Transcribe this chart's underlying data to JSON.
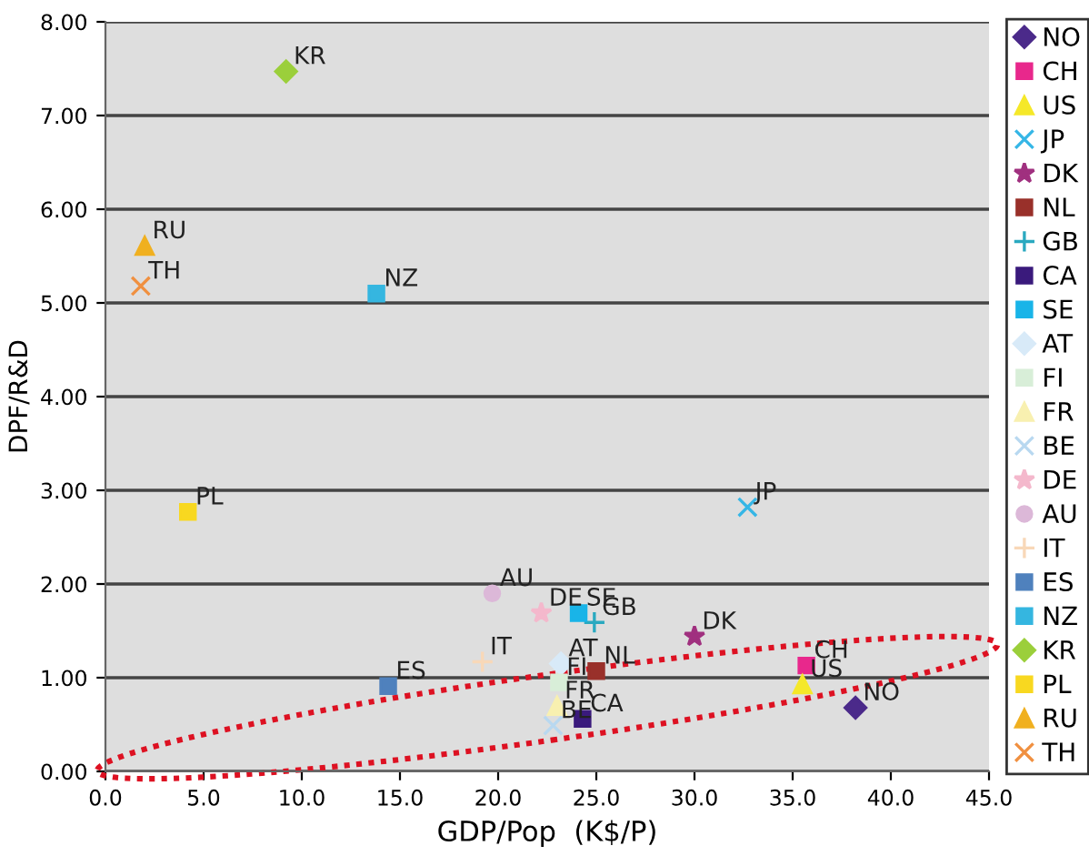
{
  "chart_data": {
    "type": "scatter",
    "xlabel": "GDP/Pop  (K$/P)",
    "ylabel": "DPF/R&D",
    "xlim": [
      0,
      45
    ],
    "ylim": [
      0,
      8
    ],
    "xticks": [
      {
        "value": 0,
        "label": "0.0"
      },
      {
        "value": 5,
        "label": "5.0"
      },
      {
        "value": 10,
        "label": "10.0"
      },
      {
        "value": 15,
        "label": "15.0"
      },
      {
        "value": 20,
        "label": "20.0"
      },
      {
        "value": 25,
        "label": "25.0"
      },
      {
        "value": 30,
        "label": "30.0"
      },
      {
        "value": 35,
        "label": "35.0"
      },
      {
        "value": 40,
        "label": "40.0"
      },
      {
        "value": 45,
        "label": "45.0"
      }
    ],
    "yticks": [
      {
        "value": 0,
        "label": "0.00"
      },
      {
        "value": 1,
        "label": "1.00"
      },
      {
        "value": 2,
        "label": "2.00"
      },
      {
        "value": 3,
        "label": "3.00"
      },
      {
        "value": 4,
        "label": "4.00"
      },
      {
        "value": 5,
        "label": "5.00"
      },
      {
        "value": 6,
        "label": "6.00"
      },
      {
        "value": 7,
        "label": "7.00"
      },
      {
        "value": 8,
        "label": "8.00"
      }
    ],
    "grid": "y",
    "legend": "right",
    "series": [
      {
        "name": "NO",
        "color": "#4b2a8a",
        "marker": "diamond",
        "x": [
          38.2
        ],
        "values": [
          0.68
        ]
      },
      {
        "name": "CH",
        "color": "#e8288c",
        "marker": "square",
        "x": [
          35.7
        ],
        "values": [
          1.13
        ]
      },
      {
        "name": "US",
        "color": "#f5e829",
        "marker": "triangle",
        "x": [
          35.5
        ],
        "values": [
          0.93
        ]
      },
      {
        "name": "JP",
        "color": "#35b6e6",
        "marker": "cross",
        "x": [
          32.7
        ],
        "values": [
          2.82
        ]
      },
      {
        "name": "DK",
        "color": "#a0307f",
        "marker": "star",
        "x": [
          30.0
        ],
        "values": [
          1.44
        ]
      },
      {
        "name": "NL",
        "color": "#99302a",
        "marker": "square",
        "x": [
          25.0
        ],
        "values": [
          1.07
        ]
      },
      {
        "name": "GB",
        "color": "#2aa9c0",
        "marker": "plus",
        "x": [
          24.9
        ],
        "values": [
          1.59
        ]
      },
      {
        "name": "CA",
        "color": "#3a1a7c",
        "marker": "square",
        "x": [
          24.3
        ],
        "values": [
          0.56
        ]
      },
      {
        "name": "SE",
        "color": "#19b4e8",
        "marker": "square",
        "x": [
          24.1
        ],
        "values": [
          1.69
        ]
      },
      {
        "name": "AT",
        "color": "#d8eaf8",
        "marker": "diamond",
        "x": [
          23.2
        ],
        "values": [
          1.15
        ]
      },
      {
        "name": "FI",
        "color": "#d8eed8",
        "marker": "square",
        "x": [
          23.1
        ],
        "values": [
          0.95
        ]
      },
      {
        "name": "FR",
        "color": "#f8f0b0",
        "marker": "triangle",
        "x": [
          23.0
        ],
        "values": [
          0.7
        ]
      },
      {
        "name": "BE",
        "color": "#b8d8f0",
        "marker": "cross",
        "x": [
          22.8
        ],
        "values": [
          0.49
        ]
      },
      {
        "name": "DE",
        "color": "#f4b8cc",
        "marker": "star",
        "x": [
          22.2
        ],
        "values": [
          1.69
        ]
      },
      {
        "name": "AU",
        "color": "#dcb8d8",
        "marker": "circle",
        "x": [
          19.7
        ],
        "values": [
          1.9
        ]
      },
      {
        "name": "IT",
        "color": "#f8d8b8",
        "marker": "plus",
        "x": [
          19.2
        ],
        "values": [
          1.17
        ]
      },
      {
        "name": "ES",
        "color": "#4f81bd",
        "marker": "square",
        "x": [
          14.4
        ],
        "values": [
          0.91
        ]
      },
      {
        "name": "NZ",
        "color": "#35b6e0",
        "marker": "square",
        "x": [
          13.8
        ],
        "values": [
          5.1
        ]
      },
      {
        "name": "KR",
        "color": "#9bcf3b",
        "marker": "diamond",
        "x": [
          9.2
        ],
        "values": [
          7.47
        ]
      },
      {
        "name": "PL",
        "color": "#f8d820",
        "marker": "square",
        "x": [
          4.2
        ],
        "values": [
          2.77
        ]
      },
      {
        "name": "RU",
        "color": "#f0b020",
        "marker": "triangle",
        "x": [
          2.0
        ],
        "values": [
          5.61
        ]
      },
      {
        "name": "TH",
        "color": "#f09040",
        "marker": "cross",
        "x": [
          1.8
        ],
        "values": [
          5.18
        ]
      }
    ]
  }
}
